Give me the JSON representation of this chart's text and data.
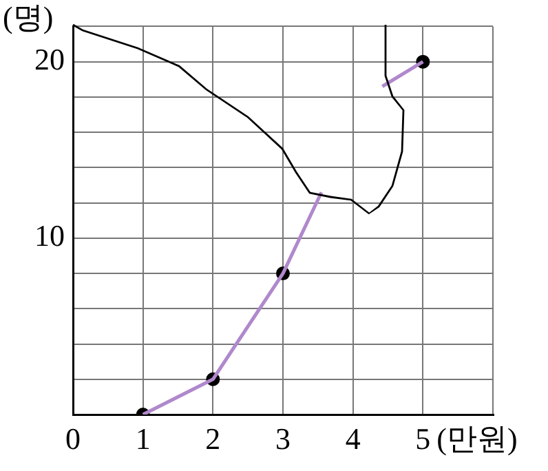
{
  "chart_data": {
    "type": "line",
    "xlabel": "(만원)",
    "ylabel": "(명)",
    "x": [
      1,
      2,
      3,
      4,
      5
    ],
    "series": [
      {
        "color": "#b088cc",
        "marker": "none",
        "x": [
          1,
          2,
          3,
          3.55,
          4,
          4.42,
          5
        ],
        "values": [
          0,
          2,
          8,
          12.6,
          null,
          18.6,
          20
        ]
      },
      {
        "type": "scatter",
        "color": "#000000",
        "marker": "circle",
        "values": [
          0,
          2,
          8,
          null,
          20
        ]
      }
    ],
    "xlim": [
      0,
      6
    ],
    "xticks": [
      0,
      1,
      2,
      3,
      4,
      5,
      {
        "value": 6,
        "label": null
      }
    ],
    "ylim": [
      0,
      22
    ],
    "yticks": [
      {
        "value": 0,
        "label": null
      },
      {
        "value": 2,
        "label": null
      },
      {
        "value": 4,
        "label": null
      },
      {
        "value": 6,
        "label": null
      },
      {
        "value": 8,
        "label": null
      },
      10,
      {
        "value": 12,
        "label": null
      },
      {
        "value": 14,
        "label": null
      },
      {
        "value": 16,
        "label": null
      },
      {
        "value": 18,
        "label": null
      },
      20,
      {
        "value": 22,
        "label": null
      }
    ],
    "grid": true,
    "legend": false,
    "line_style": "solid"
  }
}
